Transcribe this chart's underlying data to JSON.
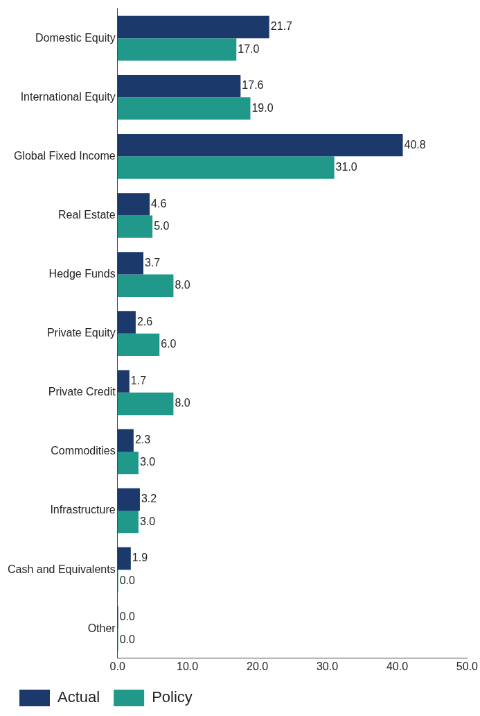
{
  "chart_data": {
    "type": "bar",
    "orientation": "horizontal",
    "categories": [
      "Domestic Equity",
      "International Equity",
      "Global Fixed Income",
      "Real Estate",
      "Hedge Funds",
      "Private Equity",
      "Private Credit",
      "Commodities",
      "Infrastructure",
      "Cash and Equivalents",
      "Other"
    ],
    "series": [
      {
        "name": "Actual",
        "color": "#1b3a6b",
        "values": [
          21.7,
          17.6,
          40.8,
          4.6,
          3.7,
          2.6,
          1.7,
          2.3,
          3.2,
          1.9,
          0.0
        ],
        "value_labels": [
          "21.7",
          "17.6",
          "40.8",
          "4.6",
          "3.7",
          "2.6",
          "1.7",
          "2.3",
          "3.2",
          "1.9",
          "0.0"
        ]
      },
      {
        "name": "Policy",
        "color": "#21998a",
        "values": [
          17.0,
          19.0,
          31.0,
          5.0,
          8.0,
          6.0,
          8.0,
          3.0,
          3.0,
          0.0,
          0.0
        ],
        "value_labels": [
          "17.0",
          "19.0",
          "31.0",
          "5.0",
          "8.0",
          "6.0",
          "8.0",
          "3.0",
          "3.0",
          "0.0",
          "0.0"
        ]
      }
    ],
    "xlim": [
      0,
      50
    ],
    "xticks": [
      {
        "value": 0,
        "label": "0.0"
      },
      {
        "value": 10,
        "label": "10.0"
      },
      {
        "value": 20,
        "label": "20.0"
      },
      {
        "value": 30,
        "label": "30.0"
      },
      {
        "value": 40,
        "label": "40.0"
      },
      {
        "value": 50,
        "label": "50.0"
      }
    ],
    "grid": false,
    "legend": "bottom left"
  }
}
